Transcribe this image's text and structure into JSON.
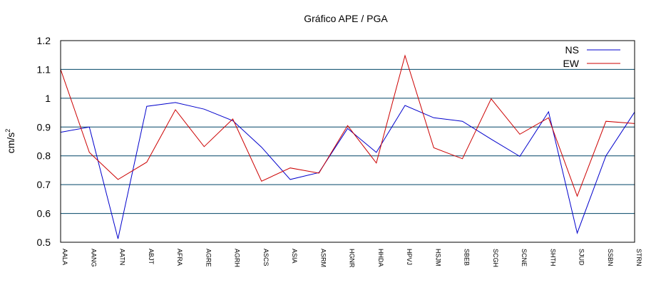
{
  "chart_data": {
    "type": "line",
    "title": "Gráfico  APE / PGA",
    "ylabel": "cm/s",
    "ylabel_sup": "2",
    "ylim": [
      0.5,
      1.2
    ],
    "yticks": [
      "0.5",
      "0.6",
      "0.7",
      "0.8",
      "0.9",
      "1",
      "1.1",
      "1.2"
    ],
    "ytick_values": [
      0.5,
      0.6,
      0.7,
      0.8,
      0.9,
      1.0,
      1.1,
      1.2
    ],
    "grid": "horizontal",
    "legend_position": "top-right",
    "categories": [
      "AALA",
      "AANG",
      "AATN",
      "ABJT",
      "AFRA",
      "AGRE",
      "AGRH",
      "ASCS",
      "ASIA",
      "ASRM",
      "HGNR",
      "HHDA",
      "HPVJ",
      "HSJM",
      "SBEB",
      "SCGH",
      "SCNE",
      "SHTH",
      "SJUD",
      "SSBN",
      "STRN"
    ],
    "series": [
      {
        "name": "NS",
        "color": "#0000cc",
        "values": [
          0.882,
          0.9,
          0.512,
          0.972,
          0.985,
          0.962,
          0.922,
          0.83,
          0.718,
          0.742,
          0.895,
          0.812,
          0.975,
          0.932,
          0.92,
          0.858,
          0.798,
          0.953,
          0.532,
          0.8,
          0.952
        ]
      },
      {
        "name": "EW",
        "color": "#cc0000",
        "values": [
          1.1,
          0.812,
          0.718,
          0.778,
          0.96,
          0.832,
          0.928,
          0.712,
          0.758,
          0.74,
          0.905,
          0.775,
          1.148,
          0.828,
          0.79,
          0.998,
          0.875,
          0.932,
          0.66,
          0.92,
          0.912
        ]
      }
    ]
  }
}
